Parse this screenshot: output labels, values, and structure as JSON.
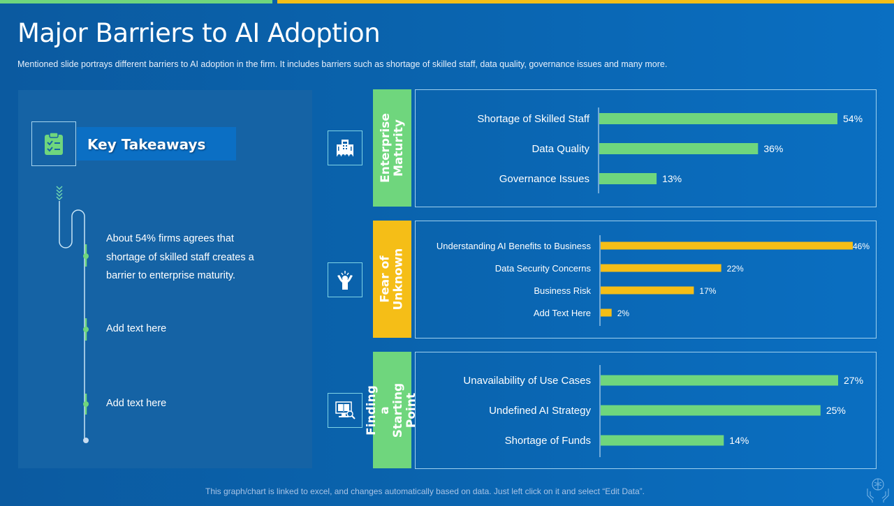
{
  "slide": {
    "title": "Major Barriers to AI Adoption",
    "subtitle": "Mentioned slide portrays different  barriers to AI adoption  in the firm. It includes barriers such as shortage of skilled staff, data quality, governance  issues and many more.",
    "footer": "This graph/chart is linked to excel, and changes automatically based on data. Just left click on it and select “Edit Data”.",
    "colors": {
      "accent_green": "#6fd67d",
      "accent_yellow": "#f5be17",
      "background": "#0a63ad"
    }
  },
  "key_takeaways": {
    "heading": "Key Takeaways",
    "icon": "clipboard-checklist-icon",
    "items": [
      "About 54% firms agrees that shortage of skilled staff creates a barrier to enterprise maturity.",
      "Add text here",
      "Add text here"
    ]
  },
  "chart_data": [
    {
      "type": "bar",
      "orientation": "horizontal",
      "title": "Enterprise Maturity",
      "icon": "office-building-icon",
      "color": "#6fd67d",
      "categories": [
        "Shortage of Skilled Staff",
        "Data Quality",
        "Governance Issues"
      ],
      "values": [
        54,
        36,
        13
      ],
      "labels": [
        "54%",
        "36%",
        "13%"
      ],
      "unit": "%",
      "grid": false
    },
    {
      "type": "bar",
      "orientation": "horizontal",
      "title": "Fear of Unknown",
      "icon": "stressed-person-icon",
      "color": "#f5be17",
      "categories": [
        "Understanding AI Benefits to Business",
        "Data Security Concerns",
        "Business Risk",
        "Add Text Here"
      ],
      "values": [
        46,
        22,
        17,
        2
      ],
      "labels": [
        "46%",
        "22%",
        "17%",
        "2%"
      ],
      "unit": "%",
      "grid": false
    },
    {
      "type": "bar",
      "orientation": "horizontal",
      "title": "Finding a Starting Point",
      "icon": "computer-book-search-icon",
      "color": "#6fd67d",
      "categories": [
        "Unavailability of Use Cases",
        "Undefined AI Strategy",
        "Shortage of Funds"
      ],
      "values": [
        27,
        25,
        14
      ],
      "labels": [
        "27%",
        "25%",
        "14%"
      ],
      "unit": "%",
      "grid": false
    }
  ]
}
